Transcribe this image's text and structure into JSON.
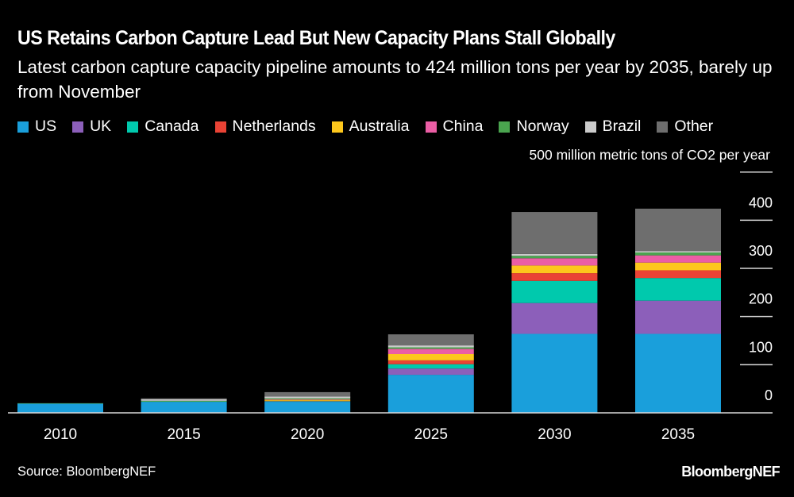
{
  "chart_data": {
    "type": "bar",
    "stacked": true,
    "title": "US Retains Carbon Capture Lead But New Capacity Plans Stall Globally",
    "subtitle": "Latest carbon capture capacity pipeline amounts to 424 million tons per year by 2035, barely up from November",
    "ylabel": "500 million metric tons of CO2 per year",
    "xlabel": "",
    "ylim": [
      0,
      500
    ],
    "yticks": [
      0,
      100,
      200,
      300,
      400,
      500
    ],
    "ytick_labels": [
      "0",
      "100",
      "200",
      "300",
      "400",
      ""
    ],
    "y_axis_position": "right",
    "grid": false,
    "legend_position": "top-left",
    "categories": [
      "2010",
      "2015",
      "2020",
      "2025",
      "2030",
      "2035"
    ],
    "series": [
      {
        "name": "US",
        "color": "#1a9fdb",
        "values": [
          19,
          23,
          23,
          79,
          164,
          164
        ]
      },
      {
        "name": "UK",
        "color": "#8c5fba",
        "values": [
          0,
          0,
          0,
          13,
          64,
          69
        ]
      },
      {
        "name": "Canada",
        "color": "#00c9ad",
        "values": [
          0,
          0,
          1,
          9,
          46,
          47
        ]
      },
      {
        "name": "Netherlands",
        "color": "#ea4335",
        "values": [
          0,
          0,
          1,
          8,
          16,
          16
        ]
      },
      {
        "name": "Australia",
        "color": "#fdc71c",
        "values": [
          0,
          0,
          2,
          13,
          16,
          16
        ]
      },
      {
        "name": "China",
        "color": "#eb5ea5",
        "values": [
          0,
          0,
          1,
          11,
          15,
          15
        ]
      },
      {
        "name": "Norway",
        "color": "#4aa44f",
        "values": [
          1,
          2,
          2,
          3,
          5,
          6
        ]
      },
      {
        "name": "Brazil",
        "color": "#cbcbcb",
        "values": [
          0,
          3,
          4,
          4,
          4,
          3
        ]
      },
      {
        "name": "Other",
        "color": "#6e6e6e",
        "values": [
          0,
          2,
          9,
          23,
          87,
          88
        ]
      }
    ],
    "source": "Source: BloombergNEF",
    "brand": "BloombergNEF"
  },
  "colors": {
    "background": "#000000",
    "text": "#ffffff",
    "axis": "#d9d9d9"
  }
}
